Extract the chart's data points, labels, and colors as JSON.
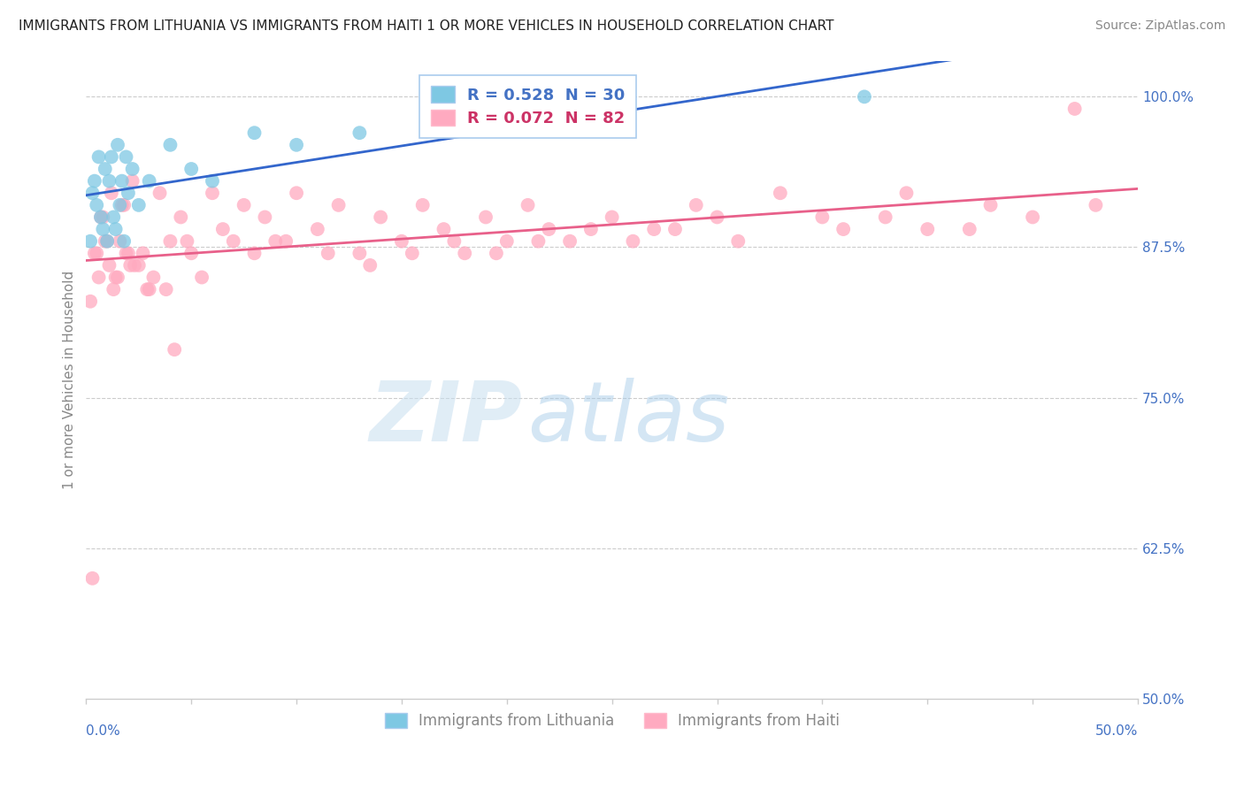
{
  "title": "IMMIGRANTS FROM LITHUANIA VS IMMIGRANTS FROM HAITI 1 OR MORE VEHICLES IN HOUSEHOLD CORRELATION CHART",
  "source": "Source: ZipAtlas.com",
  "ylabel": "1 or more Vehicles in Household",
  "legend_blue": "R = 0.528  N = 30",
  "legend_pink": "R = 0.072  N = 82",
  "legend_label_blue": "Immigrants from Lithuania",
  "legend_label_pink": "Immigrants from Haiti",
  "watermark_zip": "ZIP",
  "watermark_atlas": "atlas",
  "blue_color": "#7ec8e3",
  "pink_color": "#ffaac0",
  "blue_line_color": "#3366cc",
  "pink_line_color": "#e8608a",
  "xmin": 0.0,
  "xmax": 50.0,
  "ymin": 50.0,
  "ymax": 103.0,
  "lithuania_x": [
    0.2,
    0.3,
    0.4,
    0.5,
    0.6,
    0.7,
    0.8,
    0.9,
    1.0,
    1.1,
    1.2,
    1.3,
    1.4,
    1.5,
    1.6,
    1.7,
    1.8,
    1.9,
    2.0,
    2.2,
    2.5,
    3.0,
    4.0,
    5.0,
    6.0,
    8.0,
    10.0,
    13.0,
    22.0,
    37.0
  ],
  "lithuania_y": [
    88.0,
    92.0,
    93.0,
    91.0,
    95.0,
    90.0,
    89.0,
    94.0,
    88.0,
    93.0,
    95.0,
    90.0,
    89.0,
    96.0,
    91.0,
    93.0,
    88.0,
    95.0,
    92.0,
    94.0,
    91.0,
    93.0,
    96.0,
    94.0,
    93.0,
    97.0,
    96.0,
    97.0,
    98.0,
    100.0
  ],
  "haiti_x": [
    0.2,
    0.3,
    0.4,
    0.5,
    0.6,
    0.7,
    0.8,
    0.9,
    1.0,
    1.1,
    1.2,
    1.3,
    1.4,
    1.5,
    1.6,
    1.7,
    1.8,
    1.9,
    2.0,
    2.1,
    2.2,
    2.3,
    2.5,
    2.7,
    2.9,
    3.0,
    3.2,
    3.5,
    3.8,
    4.0,
    4.2,
    4.5,
    4.8,
    5.0,
    5.5,
    6.0,
    6.5,
    7.0,
    7.5,
    8.0,
    8.5,
    9.0,
    9.5,
    10.0,
    11.0,
    11.5,
    12.0,
    13.0,
    13.5,
    14.0,
    15.0,
    15.5,
    16.0,
    17.0,
    17.5,
    18.0,
    19.0,
    19.5,
    20.0,
    21.0,
    21.5,
    22.0,
    23.0,
    24.0,
    25.0,
    26.0,
    27.0,
    28.0,
    29.0,
    30.0,
    31.0,
    33.0,
    35.0,
    36.0,
    38.0,
    39.0,
    40.0,
    42.0,
    43.0,
    45.0,
    47.0,
    48.0
  ],
  "haiti_y": [
    83.0,
    60.0,
    87.0,
    87.0,
    85.0,
    90.0,
    90.0,
    88.0,
    88.0,
    86.0,
    92.0,
    84.0,
    85.0,
    85.0,
    88.0,
    91.0,
    91.0,
    87.0,
    87.0,
    86.0,
    93.0,
    86.0,
    86.0,
    87.0,
    84.0,
    84.0,
    85.0,
    92.0,
    84.0,
    88.0,
    79.0,
    90.0,
    88.0,
    87.0,
    85.0,
    92.0,
    89.0,
    88.0,
    91.0,
    87.0,
    90.0,
    88.0,
    88.0,
    92.0,
    89.0,
    87.0,
    91.0,
    87.0,
    86.0,
    90.0,
    88.0,
    87.0,
    91.0,
    89.0,
    88.0,
    87.0,
    90.0,
    87.0,
    88.0,
    91.0,
    88.0,
    89.0,
    88.0,
    89.0,
    90.0,
    88.0,
    89.0,
    89.0,
    91.0,
    90.0,
    88.0,
    92.0,
    90.0,
    89.0,
    90.0,
    92.0,
    89.0,
    89.0,
    91.0,
    90.0,
    99.0,
    91.0
  ]
}
